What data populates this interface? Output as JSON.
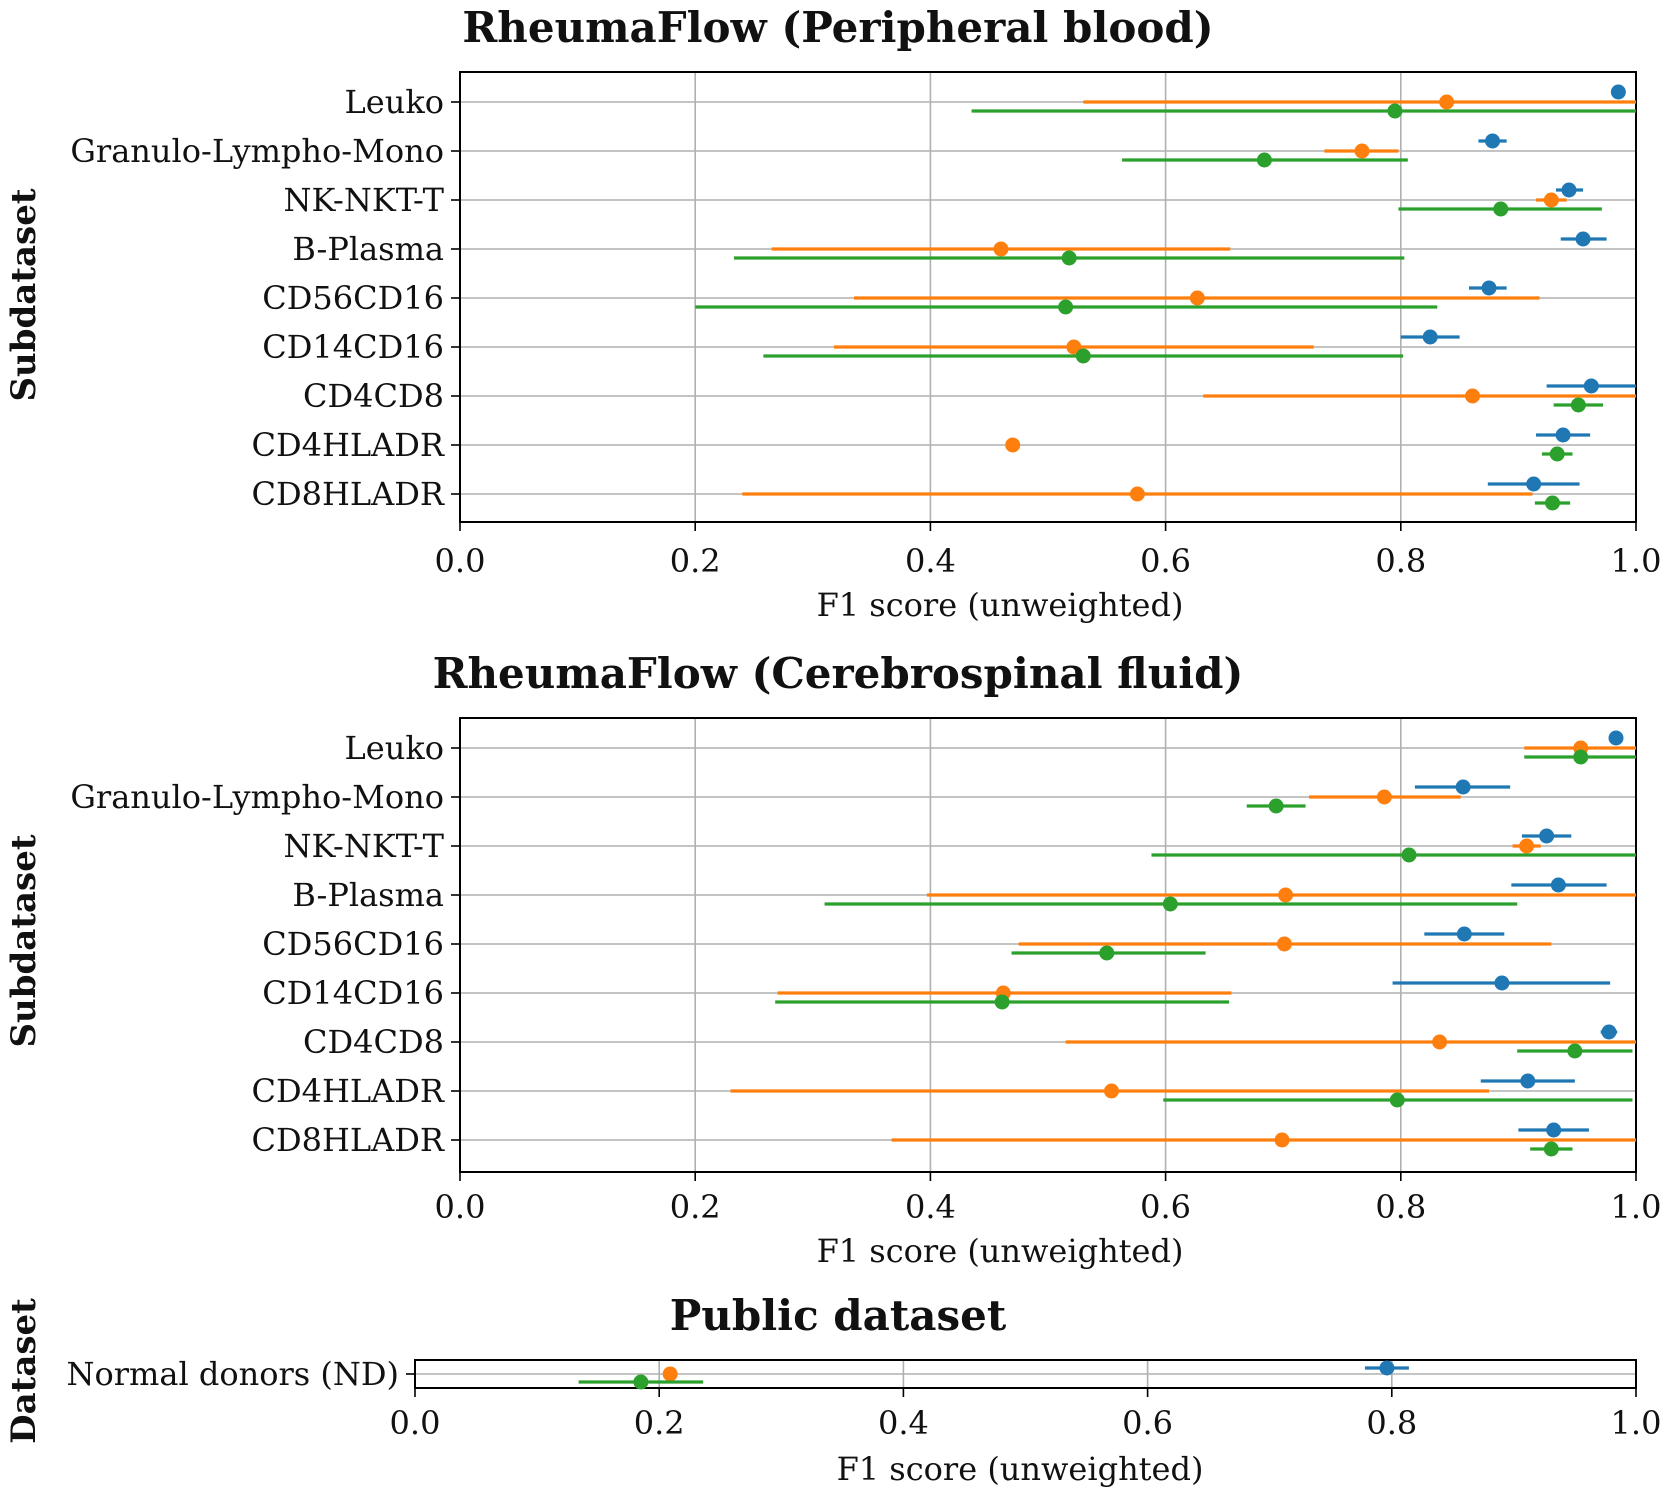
{
  "colors": {
    "blue": "#1f77b4",
    "orange": "#ff7f0e",
    "green": "#2ca02c"
  },
  "chart_data": [
    {
      "type": "scatter",
      "subtype": "dot-with-horizontal-error-bars",
      "title": "RheumaFlow (Peripheral blood)",
      "xlabel": "F1 score (unweighted)",
      "ylabel": "Subdataset",
      "xlim": [
        0.0,
        1.0
      ],
      "xticks": [
        "0.0",
        "0.2",
        "0.4",
        "0.6",
        "0.8",
        "1.0"
      ],
      "grid": true,
      "categories": [
        "Leuko",
        "Granulo-Lympho-Mono",
        "NK-NKT-T",
        "B-Plasma",
        "CD56CD16",
        "CD14CD16",
        "CD4CD8",
        "CD4HLADR",
        "CD8HLADR"
      ],
      "series": [
        {
          "name": "blue",
          "color": "#1f77b4",
          "values": [
            0.985,
            0.878,
            0.943,
            0.955,
            0.875,
            0.825,
            0.962,
            0.938,
            0.913
          ],
          "lower": [
            0.985,
            0.866,
            0.932,
            0.936,
            0.858,
            0.8,
            0.924,
            0.915,
            0.874
          ],
          "upper": [
            0.985,
            0.89,
            0.955,
            0.975,
            0.89,
            0.85,
            1.0,
            0.961,
            0.952
          ]
        },
        {
          "name": "orange",
          "color": "#ff7f0e",
          "values": [
            0.839,
            0.767,
            0.928,
            0.46,
            0.627,
            0.522,
            0.861,
            0.47,
            0.576
          ],
          "lower": [
            0.53,
            0.735,
            0.915,
            0.265,
            0.335,
            0.318,
            0.632,
            0.47,
            0.24
          ],
          "upper": [
            1.0,
            0.798,
            0.941,
            0.655,
            0.918,
            0.726,
            1.0,
            0.47,
            0.912
          ]
        },
        {
          "name": "green",
          "color": "#2ca02c",
          "values": [
            0.795,
            0.684,
            0.885,
            0.518,
            0.515,
            0.53,
            0.951,
            0.933,
            0.929
          ],
          "lower": [
            0.435,
            0.563,
            0.798,
            0.233,
            0.2,
            0.258,
            0.93,
            0.92,
            0.914
          ],
          "upper": [
            1.0,
            0.806,
            0.971,
            0.803,
            0.831,
            0.802,
            0.972,
            0.946,
            0.944
          ]
        }
      ]
    },
    {
      "type": "scatter",
      "subtype": "dot-with-horizontal-error-bars",
      "title": "RheumaFlow (Cerebrospinal fluid)",
      "xlabel": "F1 score (unweighted)",
      "ylabel": "Subdataset",
      "xlim": [
        0.0,
        1.0
      ],
      "xticks": [
        "0.0",
        "0.2",
        "0.4",
        "0.6",
        "0.8",
        "1.0"
      ],
      "grid": true,
      "categories": [
        "Leuko",
        "Granulo-Lympho-Mono",
        "NK-NKT-T",
        "B-Plasma",
        "CD56CD16",
        "CD14CD16",
        "CD4CD8",
        "CD4HLADR",
        "CD8HLADR"
      ],
      "series": [
        {
          "name": "blue",
          "color": "#1f77b4",
          "values": [
            0.983,
            0.853,
            0.924,
            0.934,
            0.854,
            0.886,
            0.977,
            0.908,
            0.93
          ],
          "lower": [
            0.983,
            0.812,
            0.903,
            0.894,
            0.82,
            0.793,
            0.97,
            0.868,
            0.9
          ],
          "upper": [
            0.983,
            0.893,
            0.945,
            0.975,
            0.888,
            0.978,
            0.984,
            0.948,
            0.96
          ]
        },
        {
          "name": "orange",
          "color": "#ff7f0e",
          "values": [
            0.953,
            0.786,
            0.907,
            0.702,
            0.701,
            0.462,
            0.833,
            0.554,
            0.699
          ],
          "lower": [
            0.905,
            0.722,
            0.895,
            0.397,
            0.475,
            0.27,
            0.515,
            0.23,
            0.367
          ],
          "upper": [
            1.0,
            0.851,
            0.919,
            1.0,
            0.928,
            0.656,
            1.0,
            0.875,
            1.0
          ]
        },
        {
          "name": "green",
          "color": "#2ca02c",
          "values": [
            0.953,
            0.694,
            0.807,
            0.604,
            0.55,
            0.461,
            0.948,
            0.797,
            0.928
          ],
          "lower": [
            0.905,
            0.669,
            0.588,
            0.31,
            0.469,
            0.268,
            0.899,
            0.598,
            0.91
          ],
          "upper": [
            1.0,
            0.719,
            1.0,
            0.899,
            0.634,
            0.654,
            0.997,
            0.997,
            0.946
          ]
        }
      ]
    },
    {
      "type": "scatter",
      "subtype": "dot-with-horizontal-error-bars",
      "title": "Public dataset",
      "xlabel": "F1 score (unweighted)",
      "ylabel": "Dataset",
      "xlim": [
        0.0,
        1.0
      ],
      "xticks": [
        "0.0",
        "0.2",
        "0.4",
        "0.6",
        "0.8",
        "1.0"
      ],
      "grid": true,
      "categories": [
        "Normal donors (ND)"
      ],
      "series": [
        {
          "name": "blue",
          "color": "#1f77b4",
          "values": [
            0.796
          ],
          "lower": [
            0.778
          ],
          "upper": [
            0.814
          ]
        },
        {
          "name": "orange",
          "color": "#ff7f0e",
          "values": [
            0.209
          ],
          "lower": [
            0.209
          ],
          "upper": [
            0.209
          ]
        },
        {
          "name": "green",
          "color": "#2ca02c",
          "values": [
            0.185
          ],
          "lower": [
            0.134
          ],
          "upper": [
            0.236
          ]
        }
      ]
    }
  ]
}
